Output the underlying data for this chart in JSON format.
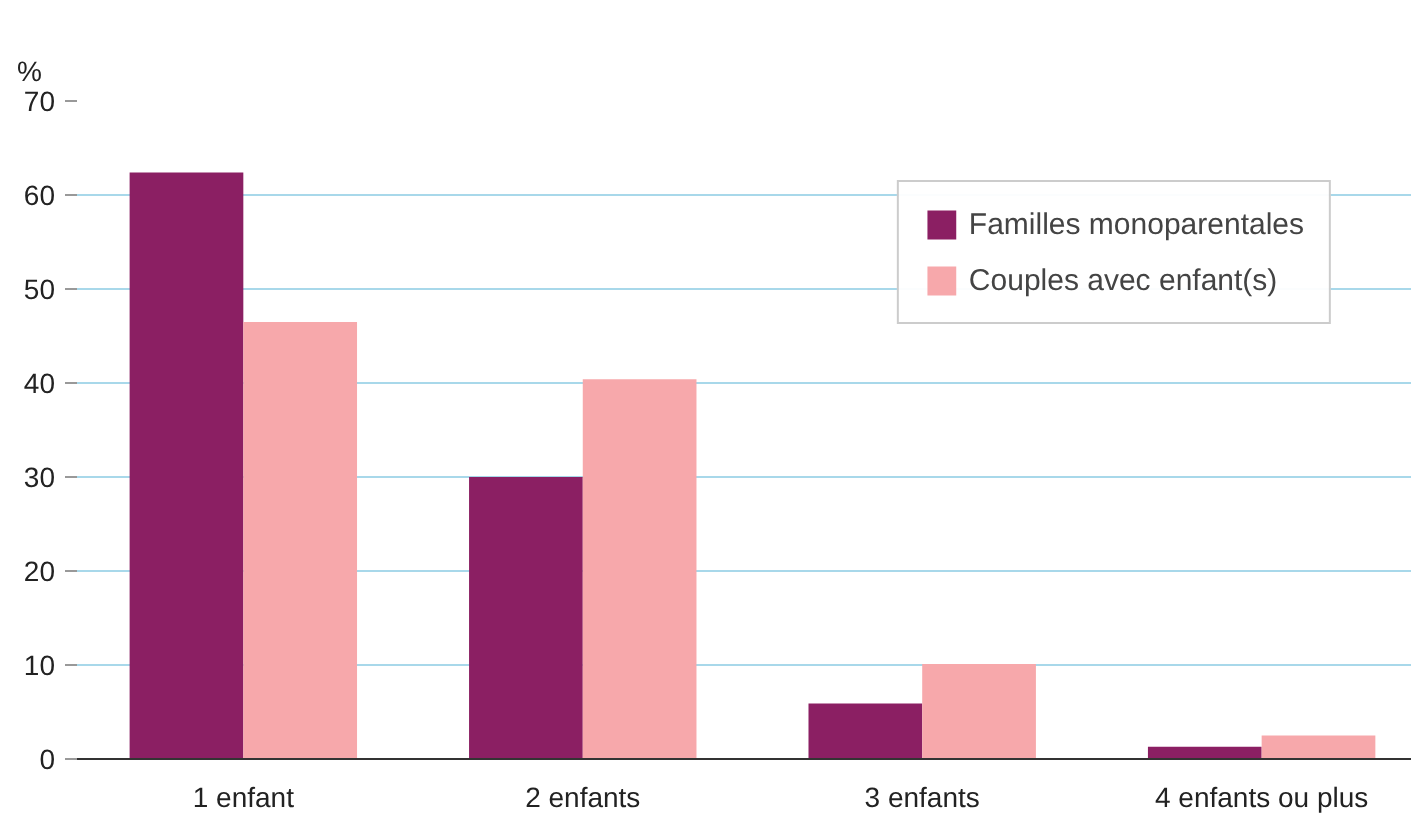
{
  "chart_data": {
    "type": "bar",
    "ylabel": "%",
    "categories": [
      "1 enfant",
      "2 enfants",
      "3 enfants",
      "4 enfants ou plus"
    ],
    "series": [
      {
        "name": "Familles monoparentales",
        "color": "#8b1f63",
        "values": [
          62.4,
          30.0,
          5.9,
          1.3
        ]
      },
      {
        "name": "Couples avec enfant(s)",
        "color": "#f7a8ab",
        "values": [
          46.5,
          40.4,
          10.1,
          2.5
        ]
      }
    ],
    "ylim": [
      0,
      70
    ],
    "yticks": [
      0,
      10,
      20,
      30,
      40,
      50,
      60,
      70
    ],
    "grid": "y",
    "legend": "top right"
  }
}
